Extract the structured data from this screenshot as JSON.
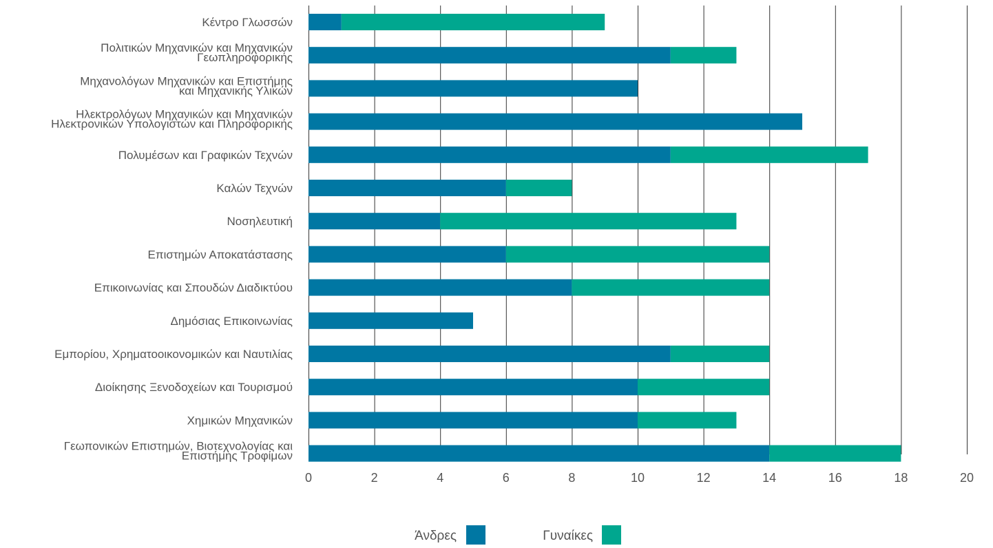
{
  "colors": {
    "men": "#0077a3",
    "women": "#00a78f",
    "grid": "#333333",
    "text": "#555555"
  },
  "chart_data": {
    "type": "bar",
    "orientation": "horizontal",
    "stacked": true,
    "categories": [
      [
        "Κέντρο Γλωσσών"
      ],
      [
        "Πολιτικών Μηχανικών και Μηχανικών",
        "Γεωπληροφορικής"
      ],
      [
        "Μηχανολόγων Μηχανικών και Επιστήμης",
        "και Μηχανικής Υλικών"
      ],
      [
        "Ηλεκτρολόγων Μηχανικών και Μηχανικών",
        "Ηλεκτρονικών Υπολογιστών και Πληροφορικής"
      ],
      [
        "Πολυμέσων και Γραφικών Τεχνών"
      ],
      [
        "Καλών Τεχνών"
      ],
      [
        "Νοσηλευτική"
      ],
      [
        "Επιστημών Αποκατάστασης"
      ],
      [
        "Επικοινωνίας και Σπουδών Διαδικτύου"
      ],
      [
        "Δημόσιας Επικοινωνίας"
      ],
      [
        "Εμπορίου, Χρηματοοικονομικών και Ναυτιλίας"
      ],
      [
        "Διοίκησης Ξενοδοχείων και Τουρισμού"
      ],
      [
        "Χημικών Μηχανικών"
      ],
      [
        "Γεωπονικών Επιστημών, Βιοτεχνολογίας και",
        "Επιστήμης Τροφίμων"
      ]
    ],
    "series": [
      {
        "name": "Άνδρες",
        "color": "#0077a3",
        "values": [
          1,
          11,
          10,
          15,
          11,
          6,
          4,
          6,
          8,
          5,
          11,
          10,
          10,
          14
        ]
      },
      {
        "name": "Γυναίκες",
        "color": "#00a78f",
        "values": [
          8,
          2,
          0,
          0,
          6,
          2,
          9,
          8,
          6,
          0,
          3,
          4,
          3,
          4
        ]
      }
    ],
    "xlim": [
      0,
      20
    ],
    "xticks": [
      0,
      2,
      4,
      6,
      8,
      10,
      12,
      14,
      16,
      18,
      20
    ],
    "grid": "vertical",
    "legend_position": "bottom-center",
    "title": "",
    "xlabel": "",
    "ylabel": ""
  }
}
